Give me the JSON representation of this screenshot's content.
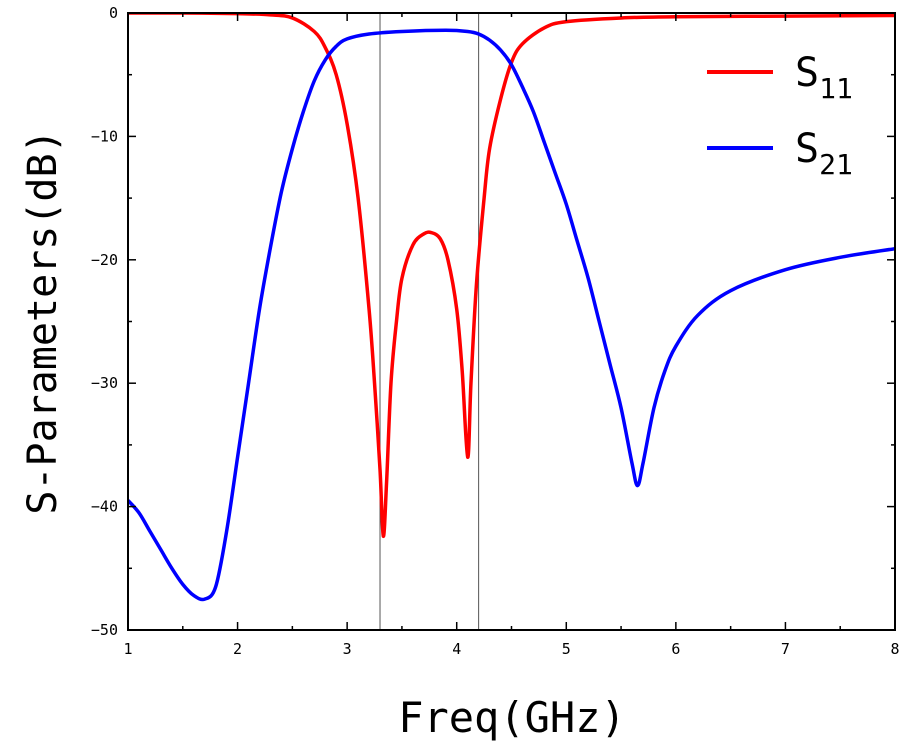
{
  "chart_data": {
    "type": "line",
    "title": "",
    "xlabel": "Freq(GHz)",
    "ylabel": "S-Parameters(dB)",
    "xlim": [
      1,
      8
    ],
    "ylim": [
      -50,
      0
    ],
    "x_ticks": [
      1,
      2,
      3,
      4,
      5,
      6,
      7,
      8
    ],
    "y_ticks": [
      0,
      -10,
      -20,
      -30,
      -40,
      -50
    ],
    "grid": false,
    "legend_position": "top-right",
    "reference_lines_x": [
      3.3,
      4.2
    ],
    "series": [
      {
        "name": "S11",
        "legend_main": "S",
        "legend_sub": "11",
        "color": "#ff0000",
        "points": [
          [
            1.0,
            0.0
          ],
          [
            1.5,
            0.0
          ],
          [
            2.0,
            -0.05
          ],
          [
            2.3,
            -0.15
          ],
          [
            2.5,
            -0.4
          ],
          [
            2.7,
            -1.5
          ],
          [
            2.8,
            -2.8
          ],
          [
            2.9,
            -5.0
          ],
          [
            3.0,
            -9.0
          ],
          [
            3.1,
            -15.0
          ],
          [
            3.2,
            -24.0
          ],
          [
            3.25,
            -30.0
          ],
          [
            3.3,
            -37.0
          ],
          [
            3.33,
            -42.4
          ],
          [
            3.36,
            -38.0
          ],
          [
            3.4,
            -30.0
          ],
          [
            3.45,
            -25.0
          ],
          [
            3.5,
            -21.5
          ],
          [
            3.6,
            -18.8
          ],
          [
            3.7,
            -17.9
          ],
          [
            3.77,
            -17.8
          ],
          [
            3.85,
            -18.3
          ],
          [
            3.92,
            -20.0
          ],
          [
            4.0,
            -24.0
          ],
          [
            4.05,
            -29.0
          ],
          [
            4.1,
            -36.0
          ],
          [
            4.13,
            -30.0
          ],
          [
            4.18,
            -22.0
          ],
          [
            4.25,
            -15.0
          ],
          [
            4.3,
            -11.0
          ],
          [
            4.4,
            -7.0
          ],
          [
            4.5,
            -4.0
          ],
          [
            4.6,
            -2.5
          ],
          [
            4.8,
            -1.2
          ],
          [
            5.0,
            -0.7
          ],
          [
            5.5,
            -0.4
          ],
          [
            6.0,
            -0.3
          ],
          [
            7.0,
            -0.25
          ],
          [
            8.0,
            -0.2
          ]
        ]
      },
      {
        "name": "S21",
        "legend_main": "S",
        "legend_sub": "21",
        "color": "#0000ff",
        "points": [
          [
            1.0,
            -39.5
          ],
          [
            1.1,
            -40.5
          ],
          [
            1.2,
            -42.0
          ],
          [
            1.3,
            -43.5
          ],
          [
            1.4,
            -45.0
          ],
          [
            1.5,
            -46.3
          ],
          [
            1.6,
            -47.2
          ],
          [
            1.7,
            -47.5
          ],
          [
            1.8,
            -46.5
          ],
          [
            1.9,
            -42.0
          ],
          [
            2.0,
            -36.0
          ],
          [
            2.1,
            -30.0
          ],
          [
            2.2,
            -24.0
          ],
          [
            2.3,
            -19.0
          ],
          [
            2.4,
            -14.5
          ],
          [
            2.5,
            -11.0
          ],
          [
            2.6,
            -8.0
          ],
          [
            2.7,
            -5.5
          ],
          [
            2.8,
            -3.8
          ],
          [
            2.9,
            -2.7
          ],
          [
            3.0,
            -2.1
          ],
          [
            3.2,
            -1.7
          ],
          [
            3.5,
            -1.5
          ],
          [
            3.9,
            -1.4
          ],
          [
            4.1,
            -1.5
          ],
          [
            4.2,
            -1.7
          ],
          [
            4.3,
            -2.2
          ],
          [
            4.4,
            -3.0
          ],
          [
            4.5,
            -4.2
          ],
          [
            4.6,
            -6.0
          ],
          [
            4.7,
            -8.0
          ],
          [
            4.8,
            -10.5
          ],
          [
            4.9,
            -13.0
          ],
          [
            5.0,
            -15.5
          ],
          [
            5.1,
            -18.5
          ],
          [
            5.2,
            -21.5
          ],
          [
            5.3,
            -25.0
          ],
          [
            5.4,
            -28.5
          ],
          [
            5.5,
            -32.0
          ],
          [
            5.6,
            -36.5
          ],
          [
            5.65,
            -38.3
          ],
          [
            5.7,
            -36.5
          ],
          [
            5.8,
            -32.0
          ],
          [
            5.9,
            -29.0
          ],
          [
            6.0,
            -27.0
          ],
          [
            6.2,
            -24.5
          ],
          [
            6.5,
            -22.5
          ],
          [
            7.0,
            -20.8
          ],
          [
            7.5,
            -19.8
          ],
          [
            8.0,
            -19.1
          ]
        ]
      }
    ]
  }
}
